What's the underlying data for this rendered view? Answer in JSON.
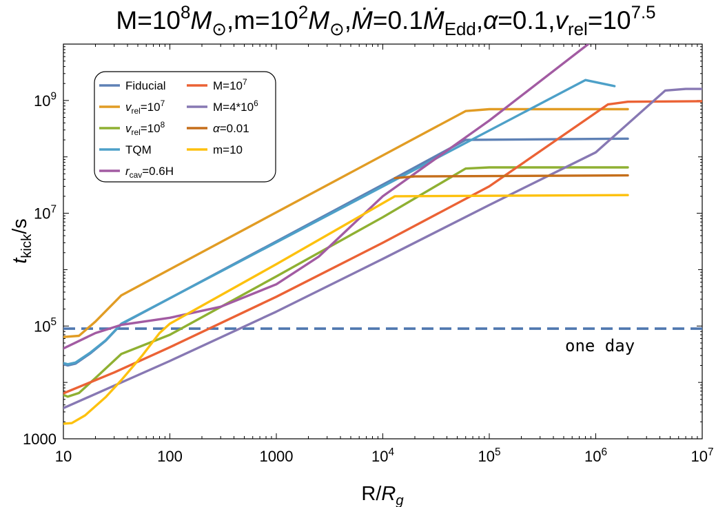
{
  "chart_data": {
    "type": "line",
    "title": {
      "segments": [
        {
          "t": "M=10",
          "s": "n"
        },
        {
          "t": "8",
          "s": "sup"
        },
        {
          "t": "M",
          "s": "i"
        },
        {
          "t": "⊙",
          "s": "sub"
        },
        {
          "t": ",m=10",
          "s": "n"
        },
        {
          "t": "2",
          "s": "sup"
        },
        {
          "t": "M",
          "s": "i"
        },
        {
          "t": "⊙",
          "s": "sub"
        },
        {
          "t": ",",
          "s": "n"
        },
        {
          "t": "Ṁ",
          "s": "i"
        },
        {
          "t": "=0.1",
          "s": "n"
        },
        {
          "t": "Ṁ",
          "s": "i"
        },
        {
          "t": "Edd",
          "s": "sub"
        },
        {
          "t": ",",
          "s": "n"
        },
        {
          "t": "α",
          "s": "i"
        },
        {
          "t": "=0.1,",
          "s": "n"
        },
        {
          "t": "v",
          "s": "i"
        },
        {
          "t": "rel",
          "s": "sub"
        },
        {
          "t": "=10",
          "s": "n"
        },
        {
          "t": "7.5",
          "s": "sup"
        }
      ]
    },
    "xlabel": {
      "segments": [
        {
          "t": "R/",
          "s": "n"
        },
        {
          "t": "R",
          "s": "i"
        },
        {
          "t": "g",
          "s": "subi"
        }
      ]
    },
    "ylabel": {
      "segments": [
        {
          "t": "t",
          "s": "i"
        },
        {
          "t": "kick",
          "s": "sub"
        },
        {
          "t": "/s",
          "s": "n"
        }
      ]
    },
    "x_scale": "log",
    "y_scale": "log",
    "xlim": [
      10,
      10000000
    ],
    "ylim": [
      1000,
      10000000000
    ],
    "x_ticks": [
      {
        "value": 10,
        "segments": [
          {
            "t": "10",
            "s": "n"
          }
        ]
      },
      {
        "value": 100,
        "segments": [
          {
            "t": "100",
            "s": "n"
          }
        ]
      },
      {
        "value": 1000,
        "segments": [
          {
            "t": "1000",
            "s": "n"
          }
        ]
      },
      {
        "value": 10000,
        "segments": [
          {
            "t": "10",
            "s": "n"
          },
          {
            "t": "4",
            "s": "sup"
          }
        ]
      },
      {
        "value": 100000,
        "segments": [
          {
            "t": "10",
            "s": "n"
          },
          {
            "t": "5",
            "s": "sup"
          }
        ]
      },
      {
        "value": 1000000,
        "segments": [
          {
            "t": "10",
            "s": "n"
          },
          {
            "t": "6",
            "s": "sup"
          }
        ]
      },
      {
        "value": 10000000,
        "segments": [
          {
            "t": "10",
            "s": "n"
          },
          {
            "t": "7",
            "s": "sup"
          }
        ]
      }
    ],
    "y_ticks": [
      {
        "value": 1000,
        "segments": [
          {
            "t": "1000",
            "s": "n"
          }
        ]
      },
      {
        "value": 100000,
        "segments": [
          {
            "t": "10",
            "s": "n"
          },
          {
            "t": "5",
            "s": "sup"
          }
        ]
      },
      {
        "value": 10000000,
        "segments": [
          {
            "t": "10",
            "s": "n"
          },
          {
            "t": "7",
            "s": "sup"
          }
        ]
      },
      {
        "value": 1000000000,
        "segments": [
          {
            "t": "10",
            "s": "n"
          },
          {
            "t": "9",
            "s": "sup"
          }
        ]
      }
    ],
    "grid": false,
    "legend_position": "top-left",
    "series": [
      {
        "name": "Fiducial",
        "legend": [
          {
            "t": "Fiducial",
            "s": "n"
          }
        ],
        "color": "#5E81B5",
        "points": [
          [
            10,
            21000
          ],
          [
            11,
            20000
          ],
          [
            13,
            21500
          ],
          [
            18,
            33000
          ],
          [
            25,
            55000
          ],
          [
            35,
            108000
          ],
          [
            13000,
            42000000
          ],
          [
            60000,
            200000000
          ],
          [
            2000000,
            210000000
          ]
        ]
      },
      {
        "name": "vrel=10^7",
        "legend": [
          {
            "t": "v",
            "s": "i"
          },
          {
            "t": "rel",
            "s": "sub"
          },
          {
            "t": "=10",
            "s": "n"
          },
          {
            "t": "7",
            "s": "sup"
          }
        ],
        "color": "#E19C24",
        "points": [
          [
            10,
            64000
          ],
          [
            14,
            67000
          ],
          [
            20,
            120000
          ],
          [
            35,
            350000
          ],
          [
            60000,
            650000000
          ],
          [
            100000,
            700000000
          ],
          [
            2000000,
            700000000
          ]
        ]
      },
      {
        "name": "vrel=10^8",
        "legend": [
          {
            "t": "v",
            "s": "i"
          },
          {
            "t": "rel",
            "s": "sub"
          },
          {
            "t": "=10",
            "s": "n"
          },
          {
            "t": "8",
            "s": "sup"
          }
        ],
        "color": "#8FB032",
        "points": [
          [
            10,
            6000
          ],
          [
            11,
            5600
          ],
          [
            14,
            6500
          ],
          [
            20,
            12000
          ],
          [
            35,
            32000
          ],
          [
            100,
            70000
          ],
          [
            1000,
            760000
          ],
          [
            10000,
            8500000
          ],
          [
            60000,
            62000000
          ],
          [
            100000,
            65000000
          ],
          [
            2000000,
            65000000
          ]
        ]
      },
      {
        "name": "TQM",
        "legend": [
          {
            "t": "TQM",
            "s": "n"
          }
        ],
        "color": "#4DA0C8",
        "points": [
          [
            10,
            22000
          ],
          [
            11,
            21000
          ],
          [
            13,
            22500
          ],
          [
            18,
            34000
          ],
          [
            25,
            56000
          ],
          [
            35,
            110000
          ],
          [
            800000,
            2300000000
          ],
          [
            1500000,
            1800000000
          ]
        ]
      },
      {
        "name": "rcav=0.6H",
        "legend": [
          {
            "t": "r",
            "s": "i"
          },
          {
            "t": "cav",
            "s": "sub"
          },
          {
            "t": "=0.6H",
            "s": "n"
          }
        ],
        "color": "#A25BA2",
        "points": [
          [
            10,
            40000
          ],
          [
            20,
            75000
          ],
          [
            35,
            105000
          ],
          [
            100,
            140000
          ],
          [
            300,
            220000
          ],
          [
            1000,
            550000
          ],
          [
            2500,
            1700000
          ],
          [
            10000,
            20000000
          ],
          [
            100000,
            440000000
          ],
          [
            850000,
            10000000000
          ]
        ]
      },
      {
        "name": "M=10^7",
        "legend": [
          {
            "t": "M=10",
            "s": "n"
          },
          {
            "t": "7",
            "s": "sup"
          }
        ],
        "color": "#EB6235",
        "points": [
          [
            10,
            6400
          ],
          [
            30,
            15000
          ],
          [
            100,
            42000
          ],
          [
            1000,
            330000
          ],
          [
            10000,
            3000000
          ],
          [
            100000,
            30000000
          ],
          [
            1300000,
            850000000
          ],
          [
            2000000,
            950000000
          ],
          [
            10000000,
            970000000
          ]
        ]
      },
      {
        "name": "M=4*10^6",
        "legend": [
          {
            "t": "M=4*10",
            "s": "n"
          },
          {
            "t": "6",
            "s": "sup"
          }
        ],
        "color": "#8778B3",
        "points": [
          [
            10,
            3500
          ],
          [
            100,
            24000
          ],
          [
            1000,
            180000
          ],
          [
            10000,
            1550000
          ],
          [
            100000,
            14000000
          ],
          [
            1000000,
            120000000
          ],
          [
            4500000,
            1500000000
          ],
          [
            7000000,
            1600000000
          ],
          [
            10000000,
            1600000000
          ]
        ]
      },
      {
        "name": "alpha=0.01",
        "legend": [
          {
            "t": "α",
            "s": "i"
          },
          {
            "t": "=0.01",
            "s": "n"
          }
        ],
        "color": "#C56E1A",
        "points": [
          [
            13000,
            42000000
          ],
          [
            20000,
            45000000
          ],
          [
            2000000,
            47000000
          ]
        ]
      },
      {
        "name": "m=10",
        "legend": [
          {
            "t": "m=10",
            "s": "n"
          }
        ],
        "color": "#FDC10E",
        "points": [
          [
            10,
            1850
          ],
          [
            12,
            1900
          ],
          [
            16,
            2600
          ],
          [
            25,
            5500
          ],
          [
            35,
            11000
          ],
          [
            55,
            30000
          ],
          [
            80,
            75000
          ],
          [
            100,
            110000
          ],
          [
            1000,
            1250000
          ],
          [
            13000,
            20000000
          ],
          [
            2000000,
            21000000
          ]
        ]
      }
    ],
    "reference_lines": [
      {
        "y": 90000,
        "style": "dashed",
        "color": "#4F77AF",
        "label": "one day",
        "label_x": 100000
      }
    ]
  }
}
